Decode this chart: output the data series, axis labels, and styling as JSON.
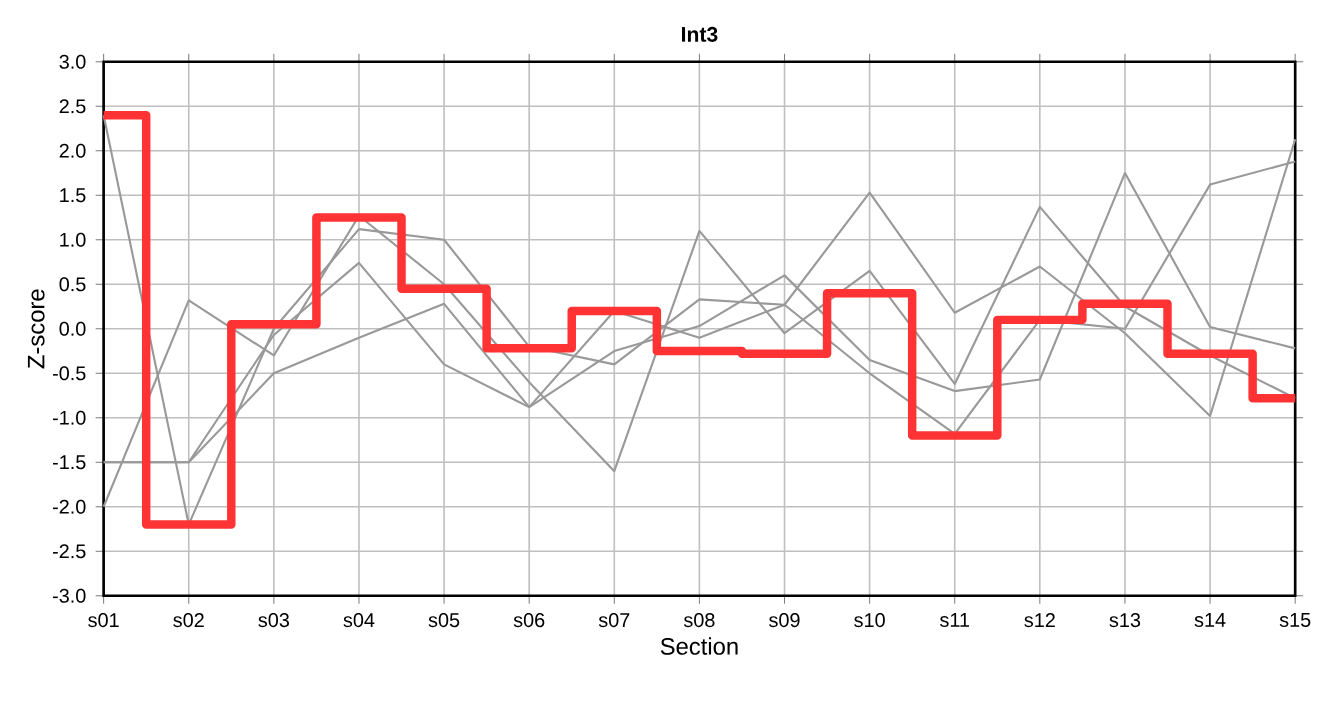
{
  "chart_data": {
    "type": "line",
    "title": "**Int3**",
    "xlabel": "Section",
    "ylabel": "Z-score",
    "categories": [
      "s01",
      "s02",
      "s03",
      "s04",
      "s05",
      "s06",
      "s07",
      "s08",
      "s09",
      "s10",
      "s11",
      "s12",
      "s13",
      "s14",
      "s15"
    ],
    "series": [
      {
        "color": "#999999",
        "values": [
          2.4,
          -2.2,
          0.0,
          1.12,
          1.0,
          -0.2,
          -0.4,
          0.33,
          0.27,
          1.53,
          0.18,
          0.7,
          -0.05,
          -0.98,
          2.13
        ]
      },
      {
        "color": "#999999",
        "values": [
          -2.0,
          0.32,
          -0.3,
          1.27,
          0.5,
          -0.6,
          -1.6,
          1.1,
          -0.05,
          0.65,
          -0.62,
          1.37,
          0.25,
          -0.3,
          -0.78
        ]
      },
      {
        "color": "#999999",
        "values": [
          -1.5,
          -1.5,
          -0.07,
          0.74,
          -0.4,
          -0.88,
          -0.25,
          0.03,
          0.6,
          -0.35,
          -0.7,
          -0.57,
          1.75,
          0.02,
          -0.22
        ]
      },
      {
        "color": "#999999",
        "values": [
          -1.5,
          -1.5,
          -0.5,
          -0.1,
          0.28,
          -0.88,
          0.2,
          -0.1,
          0.27,
          -0.5,
          -1.18,
          0.1,
          0.0,
          1.62,
          1.88
        ]
      },
      {
        "type": "step",
        "color": "#ff3333",
        "values": [
          2.4,
          -2.2,
          0.05,
          1.25,
          0.45,
          -0.22,
          0.2,
          -0.25,
          -0.28,
          0.4,
          -1.2,
          0.1,
          0.28,
          -0.28,
          -0.78
        ]
      }
    ],
    "ylim": [
      -3.0,
      3.0
    ],
    "yticks": [
      {
        "value": -3.0,
        "label": "-3.0"
      },
      {
        "value": -2.5,
        "label": "-2.5"
      },
      {
        "value": -2.0,
        "label": "-2.0"
      },
      {
        "value": -1.5,
        "label": "-1.5"
      },
      {
        "value": -1.0,
        "label": "-1.0"
      },
      {
        "value": -0.5,
        "label": "-0.5"
      },
      {
        "value": 0,
        "label": "0.0"
      },
      {
        "value": 0.5,
        "label": "0.5"
      },
      {
        "value": 1.0,
        "label": "1.0"
      },
      {
        "value": 1.5,
        "label": "1.5"
      },
      {
        "value": 2.0,
        "label": "2.0"
      },
      {
        "value": 2.5,
        "label": "2.5"
      },
      {
        "value": 3.0,
        "label": "3.0"
      }
    ],
    "grid": true,
    "marker": "none"
  }
}
